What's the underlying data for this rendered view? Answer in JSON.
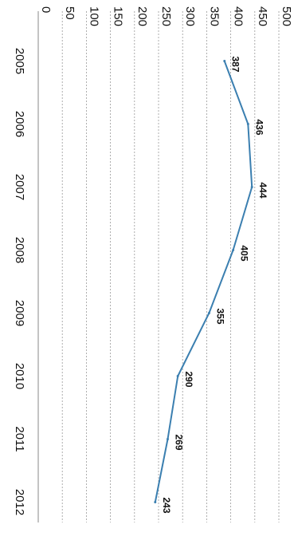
{
  "chart_data": {
    "type": "line",
    "orientation": "rotated-90-clockwise",
    "title": "",
    "xlabel": "",
    "ylabel": "",
    "categories": [
      "2005",
      "2006",
      "2007",
      "2008",
      "2009",
      "2010",
      "2011",
      "2012"
    ],
    "series": [
      {
        "values": [
          387,
          436,
          444,
          405,
          355,
          290,
          269,
          243
        ],
        "color": "#3b7fb0"
      }
    ],
    "data_labels": [
      "387",
      "436",
      "444",
      "405",
      "355",
      "290",
      "269",
      "243"
    ],
    "ylim": [
      0,
      500
    ],
    "yticks": [
      0,
      50,
      100,
      150,
      200,
      250,
      300,
      350,
      400,
      450,
      500
    ],
    "grid": true,
    "legend": "none"
  }
}
